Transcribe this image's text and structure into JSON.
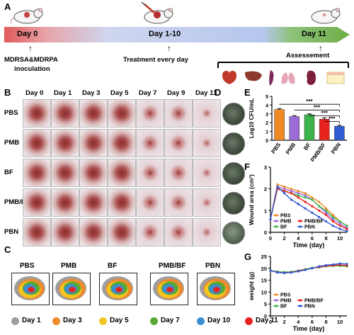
{
  "panels": {
    "A": "A",
    "B": "B",
    "C": "C",
    "D": "D",
    "E": "E",
    "F": "F",
    "G": "G"
  },
  "timeline": {
    "day0": "Day 0",
    "day1_10": "Day 1-10",
    "day11": "Day 11",
    "inoculation": "MDRSA&MDRPA\ninoculation",
    "inoc_l1": "MDRSA&MDRPA",
    "inoc_l2": "inoculation",
    "treatment": "Treatment every day",
    "assessment": "Assessement"
  },
  "photo_grid": {
    "days": [
      "Day 0",
      "Day 1",
      "Day 3",
      "Day 5",
      "Day 7",
      "Day 9",
      "Day 11"
    ],
    "groups": [
      "PBS",
      "PMB",
      "BF",
      "PMB/BF",
      "PBN"
    ]
  },
  "maps": {
    "groups": [
      "PBS",
      "PMB",
      "BF",
      "PMB/BF",
      "PBN"
    ],
    "legend": [
      {
        "label": "Day 1",
        "color": "#9e9e9e"
      },
      {
        "label": "Day 3",
        "color": "#ef8a2c"
      },
      {
        "label": "Day 5",
        "color": "#f3c623"
      },
      {
        "label": "Day 7",
        "color": "#5aa832"
      },
      {
        "label": "Day 10",
        "color": "#3a8fd0"
      },
      {
        "label": "Day 11",
        "color": "#e8231f"
      }
    ]
  },
  "chart_data": [
    {
      "panel": "E",
      "type": "bar",
      "categories": [
        "PBS",
        "PMB",
        "BF",
        "PMB/BF",
        "PBN"
      ],
      "values": [
        3.5,
        2.7,
        2.9,
        2.4,
        1.6
      ],
      "errors": [
        0.1,
        0.1,
        0.1,
        0.15,
        0.1
      ],
      "colors": [
        "#f08a24",
        "#9b6bd6",
        "#3cb44b",
        "#e8231f",
        "#2f5bd3"
      ],
      "ylabel": "Log10 CFU/mL",
      "ylim": [
        0,
        5
      ],
      "yticks": [
        "0",
        "1",
        "2",
        "3",
        "4",
        "5"
      ],
      "significance": "***"
    },
    {
      "panel": "F",
      "type": "line",
      "xlabel": "Time (day)",
      "ylabel": "Wound area (cm²)",
      "xlim": [
        0,
        11
      ],
      "ylim": [
        0,
        3
      ],
      "xticks": [
        "0",
        "2",
        "4",
        "6",
        "8",
        "10"
      ],
      "yticks": [
        "0",
        "1",
        "2",
        "3"
      ],
      "x": [
        0,
        1,
        2,
        3,
        4,
        5,
        6,
        7,
        8,
        9,
        10,
        11
      ],
      "series": [
        {
          "name": "PBS",
          "color": "#f08a24",
          "values": [
            0.6,
            2.2,
            2.1,
            2.0,
            1.9,
            1.8,
            1.6,
            1.4,
            1.1,
            0.8,
            0.5,
            0.3
          ]
        },
        {
          "name": "PMB",
          "color": "#9b6bd6",
          "values": [
            0.6,
            2.1,
            2.0,
            1.9,
            1.8,
            1.7,
            1.5,
            1.2,
            0.9,
            0.6,
            0.4,
            0.2
          ]
        },
        {
          "name": "BF",
          "color": "#3cb44b",
          "values": [
            0.6,
            2.0,
            1.9,
            1.8,
            1.7,
            1.6,
            1.5,
            1.2,
            1.0,
            0.7,
            0.5,
            0.3
          ]
        },
        {
          "name": "PMB/BF",
          "color": "#e8231f",
          "values": [
            0.6,
            2.0,
            1.9,
            1.8,
            1.6,
            1.4,
            1.2,
            1.0,
            0.8,
            0.5,
            0.3,
            0.15
          ]
        },
        {
          "name": "PBN",
          "color": "#2f5bd3",
          "values": [
            0.6,
            2.1,
            1.8,
            1.5,
            1.3,
            1.1,
            0.9,
            0.7,
            0.5,
            0.3,
            0.15,
            0.05
          ]
        }
      ]
    },
    {
      "panel": "G",
      "type": "line",
      "xlabel": "Time (day)",
      "ylabel": "weight (g)",
      "xlim": [
        0,
        11
      ],
      "ylim": [
        0,
        25
      ],
      "xticks": [
        "0",
        "2",
        "4",
        "6",
        "8",
        "10"
      ],
      "yticks": [
        "0",
        "5",
        "10",
        "15",
        "20",
        "25"
      ],
      "x": [
        0,
        1,
        2,
        3,
        4,
        5,
        6,
        7,
        8,
        9,
        10,
        11
      ],
      "series": [
        {
          "name": "PBS",
          "color": "#f08a24",
          "values": [
            19,
            18.5,
            18.2,
            18.4,
            19,
            19.5,
            20,
            20.5,
            21,
            21,
            21.3,
            21
          ]
        },
        {
          "name": "PMB",
          "color": "#9b6bd6",
          "values": [
            19,
            18.2,
            18,
            18.3,
            18.8,
            19.5,
            20,
            20.6,
            21,
            21.3,
            21.5,
            21.2
          ]
        },
        {
          "name": "BF",
          "color": "#3cb44b",
          "values": [
            19,
            18.6,
            18.4,
            18.5,
            19,
            19.6,
            20.2,
            20.4,
            20.8,
            21,
            21,
            20.8
          ]
        },
        {
          "name": "PMB/BF",
          "color": "#e8231f",
          "values": [
            19,
            18.4,
            18.1,
            18.3,
            18.9,
            19.4,
            20,
            20.5,
            21,
            21.2,
            21.4,
            21.1
          ]
        },
        {
          "name": "PBN",
          "color": "#2f5bd3",
          "values": [
            19,
            18.3,
            18,
            18.2,
            18.7,
            19.3,
            20,
            20.8,
            21.3,
            21.6,
            22,
            21.8
          ]
        }
      ]
    }
  ]
}
